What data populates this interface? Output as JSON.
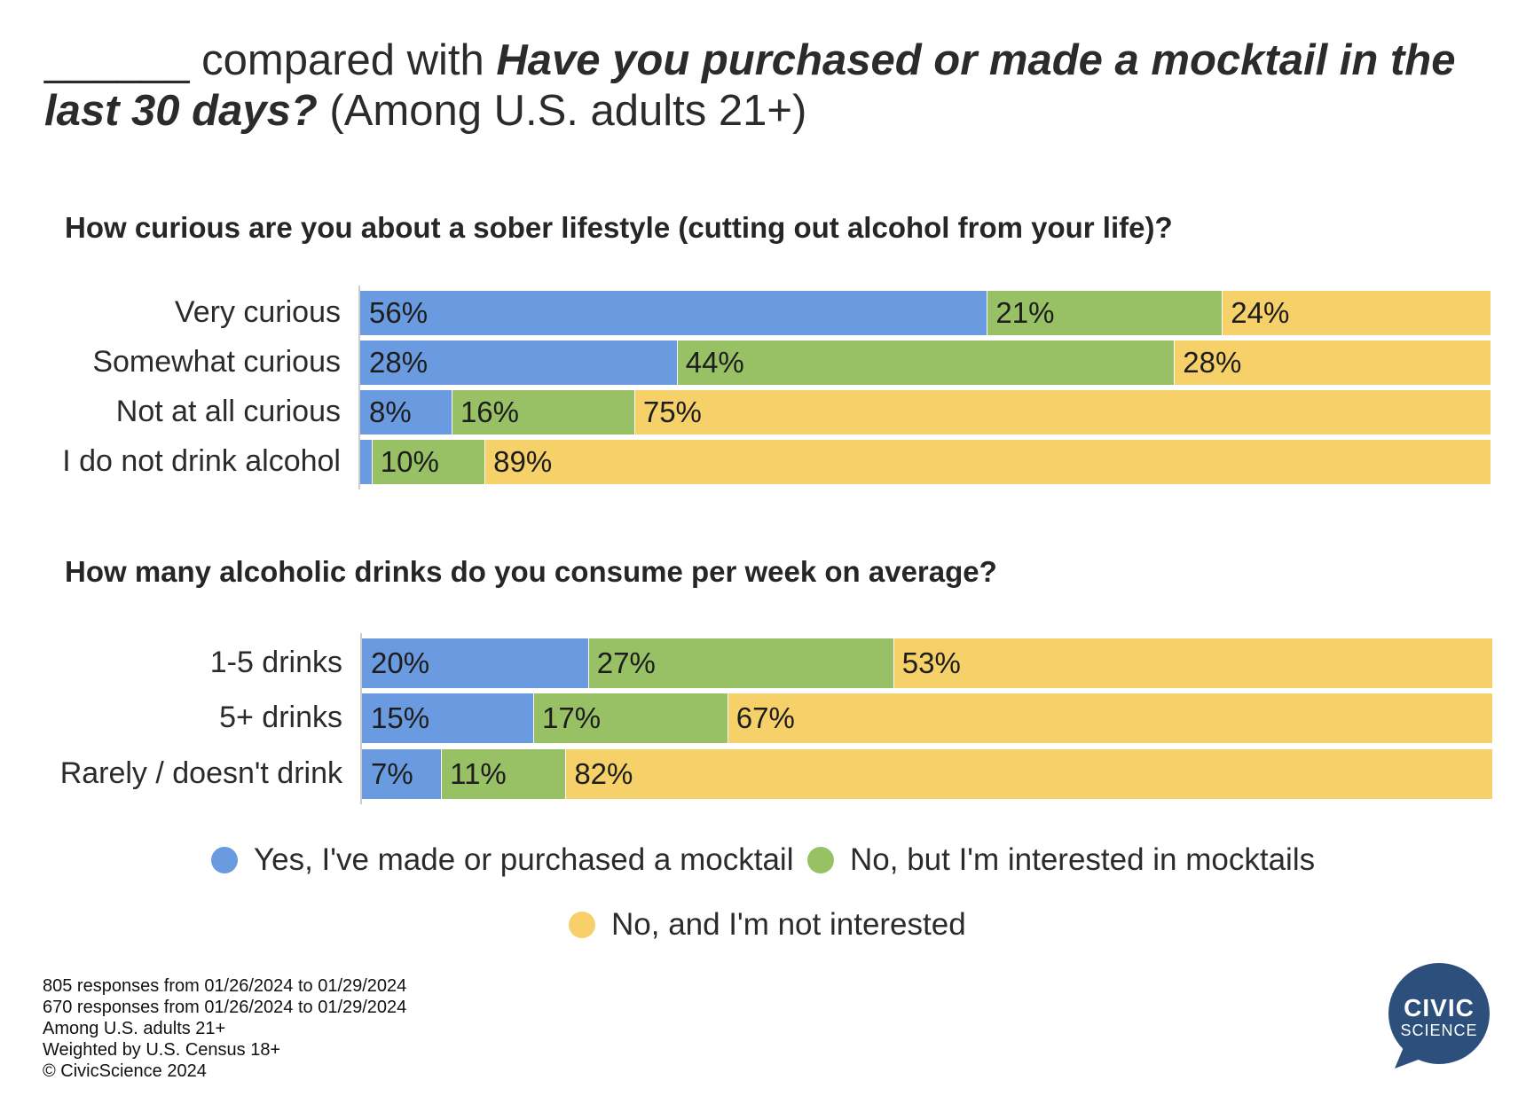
{
  "title": {
    "blank": "______",
    "part1": " compared with ",
    "emphasis": "Have you purchased or made a mocktail in the last 30 days?",
    "part2": " (Among U.S. adults 21+)"
  },
  "colors": {
    "yes": "#6a9ae0",
    "interested": "#98c064",
    "not_interested": "#f6d068"
  },
  "legend": [
    {
      "key": "yes",
      "label": "Yes, I've made or purchased a mocktail",
      "color": "#6a9ae0"
    },
    {
      "key": "interested",
      "label": "No, but I'm interested in mocktails",
      "color": "#98c064"
    },
    {
      "key": "not_interested",
      "label": "No, and I'm not interested",
      "color": "#f6d068"
    }
  ],
  "chart_data": [
    {
      "type": "bar",
      "stacked": true,
      "orientation": "horizontal",
      "title": "How curious are you about a sober lifestyle (cutting out alcohol from your life)?",
      "categories": [
        "Very curious",
        "Somewhat curious",
        "Not at all curious",
        "I do not drink alcohol"
      ],
      "series": [
        {
          "name": "Yes, I've made or purchased a mocktail",
          "values": [
            56,
            28,
            8,
            1
          ],
          "labels": [
            "56%",
            "28%",
            "8%",
            ""
          ]
        },
        {
          "name": "No, but I'm interested in mocktails",
          "values": [
            21,
            44,
            16,
            10
          ],
          "labels": [
            "21%",
            "44%",
            "16%",
            "10%"
          ]
        },
        {
          "name": "No, and I'm not interested",
          "values": [
            24,
            28,
            75,
            89
          ],
          "labels": [
            "24%",
            "28%",
            "75%",
            "89%"
          ]
        }
      ],
      "xlim": [
        0,
        100
      ]
    },
    {
      "type": "bar",
      "stacked": true,
      "orientation": "horizontal",
      "title": "How many alcoholic drinks do you consume per week on average?",
      "categories": [
        "1-5 drinks",
        "5+ drinks",
        "Rarely / doesn't drink"
      ],
      "series": [
        {
          "name": "Yes, I've made or purchased a mocktail",
          "values": [
            20,
            15,
            7
          ],
          "labels": [
            "20%",
            "15%",
            "7%"
          ]
        },
        {
          "name": "No, but I'm interested in mocktails",
          "values": [
            27,
            17,
            11
          ],
          "labels": [
            "27%",
            "17%",
            "11%"
          ]
        },
        {
          "name": "No, and I'm not interested",
          "values": [
            53,
            67,
            82
          ],
          "labels": [
            "53%",
            "67%",
            "82%"
          ]
        }
      ],
      "xlim": [
        0,
        100
      ]
    }
  ],
  "footnotes": [
    "805 responses from 01/26/2024 to 01/29/2024",
    "670 responses from 01/26/2024 to 01/29/2024",
    "Among U.S. adults 21+",
    "Weighted by U.S. Census 18+",
    "© CivicScience 2024"
  ],
  "logo": {
    "line1": "CIVIC",
    "line2": "SCIENCE",
    "color": "#2c4f7c"
  }
}
